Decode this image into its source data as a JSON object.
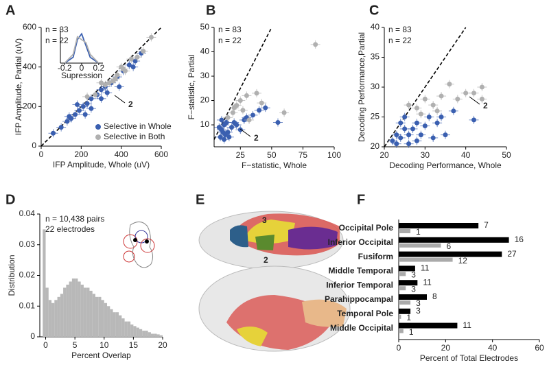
{
  "chart_data": [
    {
      "panel": "A",
      "type": "scatter",
      "xlabel": "IFP Amplitude, Whole (uV)",
      "ylabel": "IFP Amplitude, Partial (uV)",
      "xlim": [
        0,
        600
      ],
      "ylim": [
        0,
        600
      ],
      "xticks": [
        0,
        200,
        400,
        600
      ],
      "yticks": [
        0,
        200,
        400,
        600
      ],
      "legend": "lower right",
      "series": [
        {
          "name": "Selective in Whole",
          "color": "#3a5fb0",
          "x": [
            60,
            100,
            130,
            150,
            170,
            190,
            210,
            230,
            250,
            280,
            300,
            320,
            350,
            380,
            410,
            440,
            460,
            470,
            500,
            250,
            300,
            220,
            330,
            390,
            180,
            140
          ],
          "y": [
            65,
            95,
            125,
            140,
            160,
            180,
            200,
            215,
            240,
            260,
            285,
            300,
            320,
            350,
            380,
            410,
            400,
            430,
            470,
            190,
            240,
            160,
            270,
            300,
            210,
            150
          ]
        },
        {
          "name": "Selective in Both",
          "color": "#b0b0b0",
          "x": [
            230,
            270,
            320,
            340,
            360,
            380,
            400,
            420,
            450,
            480,
            510,
            550,
            300,
            370,
            410
          ],
          "y": [
            250,
            260,
            310,
            320,
            330,
            360,
            400,
            380,
            440,
            450,
            480,
            550,
            320,
            340,
            390
          ]
        }
      ],
      "annotations": [
        "n = 83",
        "n = 22",
        "2"
      ],
      "inset": {
        "type": "line",
        "xlabel": "Supression",
        "xlim": [
          -0.25,
          0.25
        ],
        "xticks": [
          -0.2,
          0,
          0.2
        ],
        "ylim": [
          0,
          1.1
        ],
        "x": [
          -0.2,
          -0.1,
          -0.05,
          0,
          0.05,
          0.1,
          0.2
        ],
        "series": [
          {
            "color": "#3a5fb0",
            "values": [
              0,
              0.2,
              0.8,
              1,
              0.6,
              0.2,
              0
            ]
          },
          {
            "color": "#b0b0b0",
            "values": [
              0,
              0.3,
              0.9,
              0.8,
              0.7,
              0.3,
              0
            ]
          }
        ]
      }
    },
    {
      "panel": "B",
      "type": "scatter",
      "xlabel": "F−statistic, Whole",
      "ylabel": "F−statistic, Partial",
      "xlim": [
        4,
        100
      ],
      "ylim": [
        1,
        50
      ],
      "xticks": [
        25,
        50,
        75,
        100
      ],
      "yticks": [
        10,
        20,
        30,
        40,
        50
      ],
      "series": [
        {
          "color": "#3a5fb0",
          "x": [
            8,
            10,
            12,
            13,
            15,
            18,
            20,
            22,
            10,
            9,
            14,
            25,
            30,
            35,
            55,
            40,
            12,
            16,
            11,
            28,
            45
          ],
          "y": [
            9,
            8,
            10,
            6,
            7,
            9,
            11,
            10,
            12,
            5,
            11,
            8,
            13,
            14,
            11,
            16,
            4,
            5,
            7,
            12,
            17
          ]
        },
        {
          "color": "#b0b0b0",
          "x": [
            15,
            20,
            25,
            30,
            38,
            42,
            60,
            85,
            27,
            32,
            19,
            22
          ],
          "y": [
            13,
            17,
            20,
            22,
            23,
            19,
            15,
            43,
            16,
            12,
            15,
            18
          ]
        }
      ],
      "annotations": [
        "n = 83",
        "n = 22",
        "2"
      ]
    },
    {
      "panel": "C",
      "type": "scatter",
      "xlabel": "Decoding Performance, Whole",
      "ylabel": "Decoding Performance,Partial",
      "xlim": [
        20,
        50
      ],
      "ylim": [
        20,
        40
      ],
      "xticks": [
        20,
        30,
        40,
        50
      ],
      "yticks": [
        20,
        25,
        30,
        35,
        40
      ],
      "series": [
        {
          "color": "#3a5fb0",
          "x": [
            22,
            23,
            24,
            25,
            26,
            24,
            27,
            28,
            26,
            29,
            30,
            31,
            33,
            35,
            37,
            34,
            42,
            25,
            23,
            28,
            32
          ],
          "y": [
            21,
            22,
            21.5,
            23,
            22,
            24,
            23,
            24,
            20.5,
            22,
            23.5,
            25,
            24,
            22,
            26,
            25,
            24.5,
            25,
            20.5,
            21,
            21.5
          ]
        },
        {
          "color": "#b0b0b0",
          "x": [
            26,
            28,
            30,
            32,
            34,
            36,
            38,
            40,
            42,
            44,
            29,
            33,
            44
          ],
          "y": [
            27,
            26.5,
            28,
            27,
            28.5,
            30.5,
            28,
            29,
            29,
            30,
            25.5,
            26,
            28
          ]
        }
      ],
      "annotations": [
        "n = 83",
        "n = 22",
        "2"
      ]
    },
    {
      "panel": "D",
      "type": "histogram",
      "xlabel": "Percent Overlap",
      "ylabel": "Distribution",
      "color": "#b8b8b8",
      "xlim": [
        -1,
        20
      ],
      "ylim": [
        0,
        0.04
      ],
      "xticks": [
        0,
        5,
        10,
        15,
        20
      ],
      "yticks": [
        0,
        0.01,
        0.02,
        0.03,
        0.04
      ],
      "bins": [
        -0.5,
        0,
        0.5,
        1,
        1.5,
        2,
        2.5,
        3,
        3.5,
        4,
        4.5,
        5,
        5.5,
        6,
        6.5,
        7,
        7.5,
        8,
        8.5,
        9,
        9.5,
        10,
        10.5,
        11,
        11.5,
        12,
        12.5,
        13,
        13.5,
        14,
        14.5,
        15,
        15.5,
        16,
        16.5,
        17,
        17.5,
        18,
        18.5,
        19,
        19.5,
        20
      ],
      "counts": [
        0.035,
        0.016,
        0.012,
        0.011,
        0.012,
        0.013,
        0.014,
        0.016,
        0.017,
        0.018,
        0.019,
        0.019,
        0.018,
        0.017,
        0.016,
        0.016,
        0.015,
        0.014,
        0.013,
        0.013,
        0.012,
        0.011,
        0.01,
        0.009,
        0.008,
        0.008,
        0.007,
        0.006,
        0.005,
        0.005,
        0.004,
        0.0035,
        0.003,
        0.0025,
        0.002,
        0.002,
        0.0015,
        0.001,
        0.001,
        0.0008,
        0.0005
      ],
      "annotations": [
        "n = 10,438 pairs",
        "22 electrodes"
      ]
    },
    {
      "panel": "E",
      "type": "image",
      "annotations": [
        "3",
        "2"
      ]
    },
    {
      "panel": "F",
      "type": "hbar",
      "xlabel": "Percent of Total Electrodes",
      "xlim": [
        0,
        60
      ],
      "xticks": [
        0,
        20,
        40,
        60
      ],
      "categories": [
        "Occipital Pole",
        "Inferior Occipital",
        "Fusiform",
        "Middle Temporal",
        "Inferior Temporal",
        "Parahippocampal",
        "Temporal Pole",
        "Middle Occipital"
      ],
      "category_colors": [
        "#a3195b",
        "#2e3c8c",
        "#6a2d91",
        "#d9534f",
        "#e6d23a",
        "#5a8a2e",
        "#2d5f8a",
        "#e8b88a"
      ],
      "series": [
        {
          "color": "#000000",
          "values": [
            34,
            47,
            44,
            7,
            8,
            12,
            5,
            25
          ],
          "counts": [
            7,
            16,
            27,
            11,
            11,
            8,
            3,
            11
          ]
        },
        {
          "color": "#aaaaaa",
          "values": [
            5,
            18,
            23,
            3,
            3,
            5,
            1,
            2
          ],
          "counts": [
            1,
            6,
            12,
            3,
            3,
            3,
            1,
            1
          ]
        }
      ]
    }
  ]
}
